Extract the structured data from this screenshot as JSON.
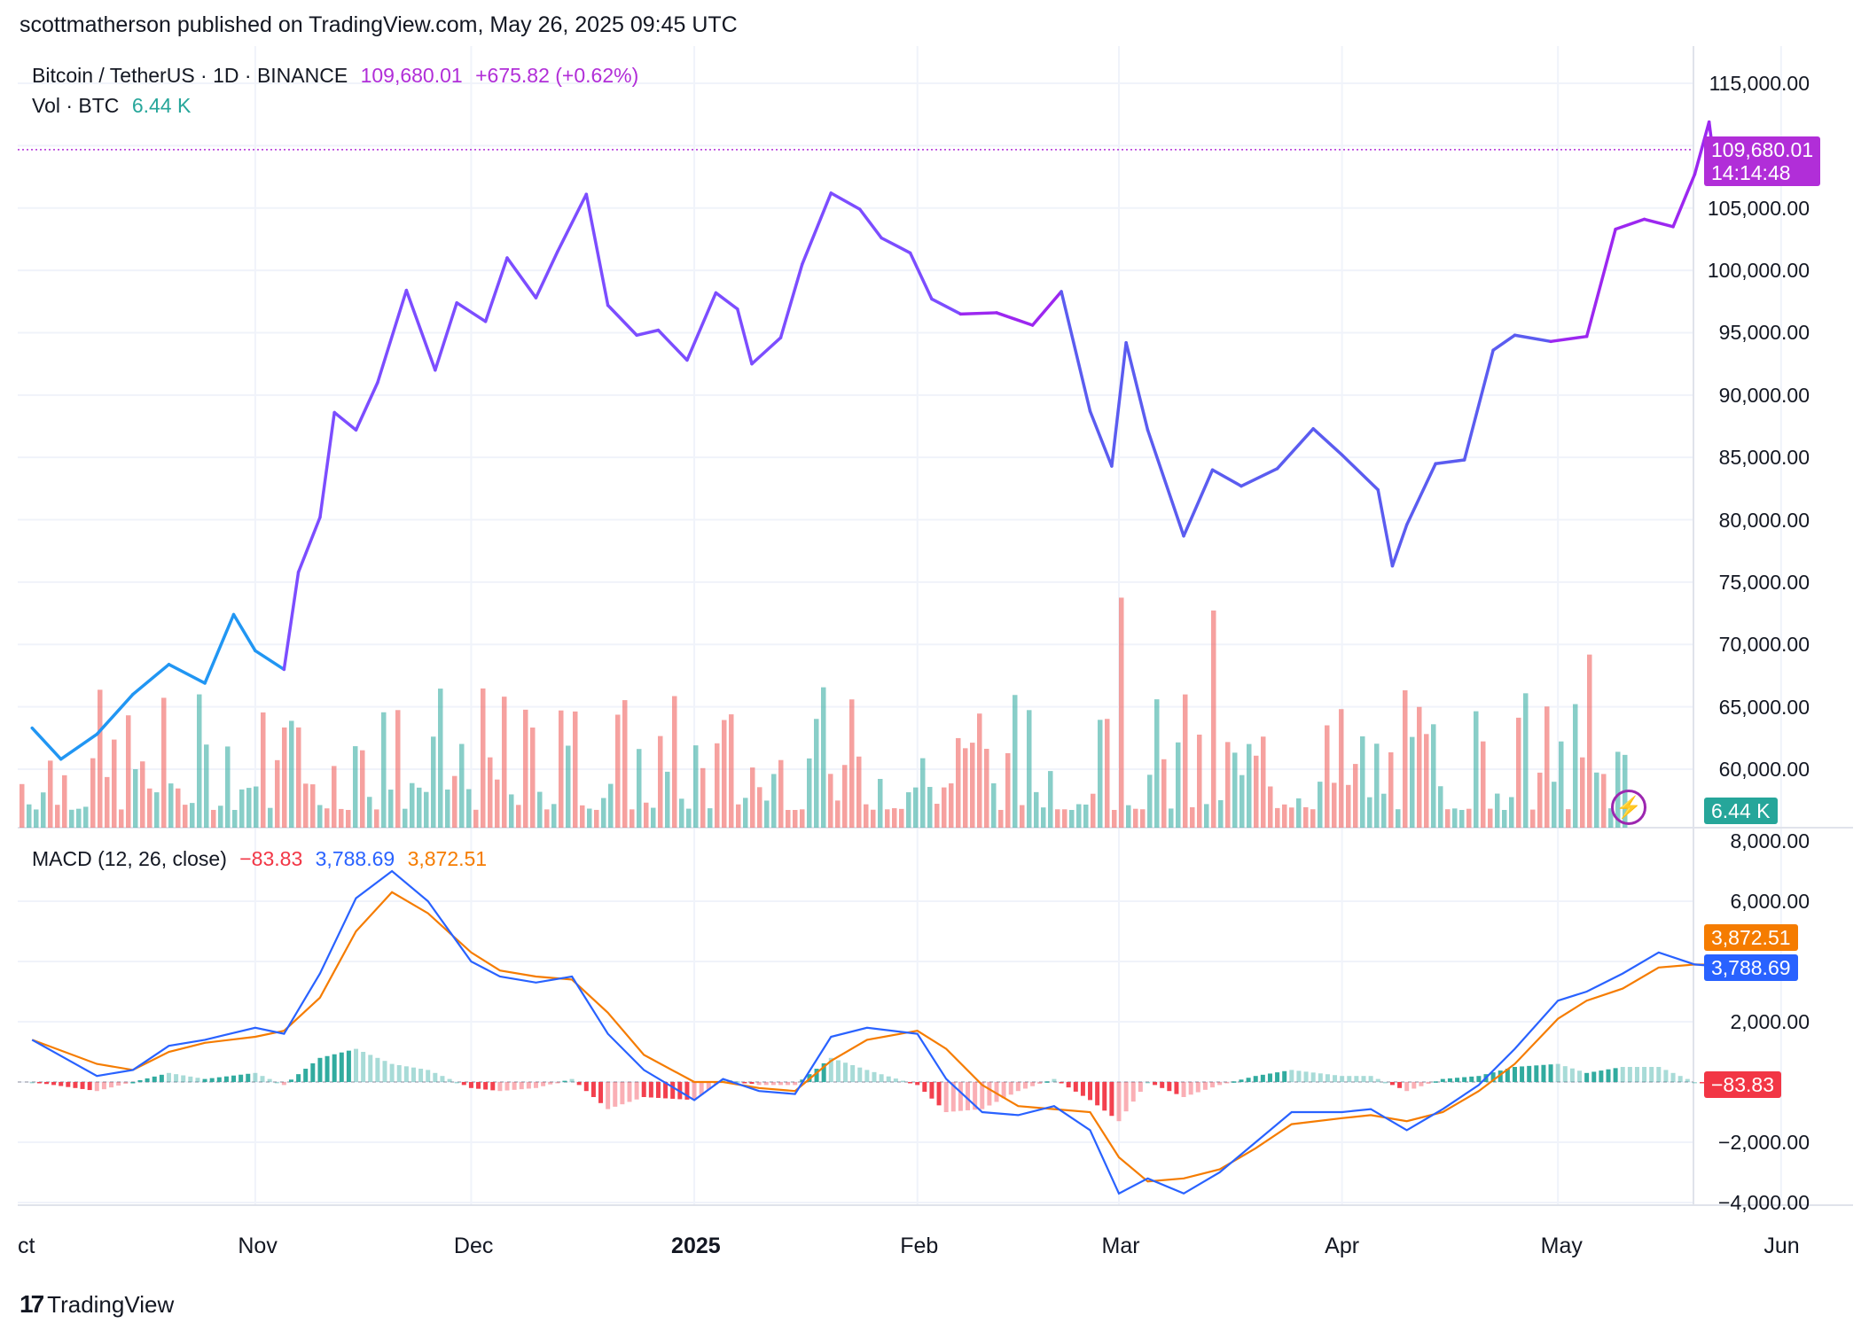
{
  "publisher": "scottmatherson published on TradingView.com, May 26, 2025 09:45 UTC",
  "brand": "TradingView",
  "colors": {
    "price_line_early": "#2196f3",
    "price_line_late": "#9c27f0",
    "price_last": "#b12ed8",
    "vol_up": "#26a69a",
    "vol_down": "#ef5350",
    "macd": "#2962ff",
    "signal": "#f57c00",
    "hist_up": "#26a69a",
    "hist_down": "#f23645"
  },
  "legend": {
    "symbol": "Bitcoin / TetherUS · 1D · BINANCE",
    "last": "109,680.01",
    "change": "+675.82 (+0.62%)",
    "vol_label": "Vol · BTC",
    "vol_value": "6.44 K",
    "macd_label": "MACD (12, 26, close)",
    "macd_hist": "−83.83",
    "macd_line": "3,788.69",
    "macd_signal": "3,872.51"
  },
  "price_tags": {
    "price": "109,680.01",
    "countdown": "14:14:48",
    "volume": "6.44 K",
    "signal": "3,872.51",
    "macd": "3,788.69",
    "hist": "−83.83"
  },
  "icons": {
    "flash": "lightning-icon",
    "logo": "tradingview-logo-icon"
  },
  "chart_data": [
    {
      "type": "line",
      "title": "Bitcoin / TetherUS · 1D · BINANCE",
      "x": [
        "2024-10-01",
        "2024-10-05",
        "2024-10-10",
        "2024-10-15",
        "2024-10-20",
        "2024-10-25",
        "2024-10-29",
        "2024-11-01",
        "2024-11-05",
        "2024-11-07",
        "2024-11-10",
        "2024-11-12",
        "2024-11-15",
        "2024-11-18",
        "2024-11-22",
        "2024-11-26",
        "2024-11-29",
        "2024-12-03",
        "2024-12-06",
        "2024-12-10",
        "2024-12-13",
        "2024-12-17",
        "2024-12-20",
        "2024-12-24",
        "2024-12-27",
        "2024-12-31",
        "2025-01-04",
        "2025-01-07",
        "2025-01-09",
        "2025-01-13",
        "2025-01-16",
        "2025-01-20",
        "2025-01-24",
        "2025-01-27",
        "2025-01-31",
        "2025-02-03",
        "2025-02-07",
        "2025-02-12",
        "2025-02-17",
        "2025-02-21",
        "2025-02-25",
        "2025-02-28",
        "2025-03-02",
        "2025-03-05",
        "2025-03-10",
        "2025-03-14",
        "2025-03-18",
        "2025-03-23",
        "2025-03-28",
        "2025-04-01",
        "2025-04-06",
        "2025-04-08",
        "2025-04-10",
        "2025-04-14",
        "2025-04-18",
        "2025-04-22",
        "2025-04-25",
        "2025-04-30",
        "2025-05-05",
        "2025-05-09",
        "2025-05-13",
        "2025-05-17",
        "2025-05-20",
        "2025-05-22",
        "2025-05-23",
        "2025-05-26"
      ],
      "y": [
        63300,
        60800,
        62800,
        66000,
        68400,
        66900,
        72400,
        69500,
        68000,
        75800,
        80200,
        88600,
        87200,
        91000,
        98400,
        92000,
        97400,
        95900,
        101000,
        97800,
        101500,
        106100,
        97200,
        94800,
        95200,
        92800,
        98200,
        96900,
        92500,
        94600,
        100500,
        106200,
        104900,
        102600,
        101400,
        97700,
        96500,
        96600,
        95600,
        98300,
        88700,
        84300,
        94200,
        87200,
        78700,
        84000,
        82700,
        84100,
        87300,
        85200,
        82400,
        76300,
        79600,
        84500,
        84800,
        93600,
        94800,
        94300,
        94700,
        103300,
        104100,
        103500,
        107700,
        111900,
        107300,
        109680
      ]
    },
    {
      "type": "bar",
      "title": "Vol · BTC",
      "last_value": "6.44 K"
    },
    {
      "type": "line",
      "title": "MACD (12, 26, close)",
      "ylim": [
        -4000,
        8000
      ],
      "x": [
        "2024-10-01",
        "2024-10-10",
        "2024-10-15",
        "2024-10-20",
        "2024-10-25",
        "2024-11-01",
        "2024-11-05",
        "2024-11-10",
        "2024-11-15",
        "2024-11-20",
        "2024-11-25",
        "2024-12-01",
        "2024-12-05",
        "2024-12-10",
        "2024-12-15",
        "2024-12-20",
        "2024-12-25",
        "2025-01-01",
        "2025-01-05",
        "2025-01-10",
        "2025-01-15",
        "2025-01-20",
        "2025-01-25",
        "2025-02-01",
        "2025-02-05",
        "2025-02-10",
        "2025-02-15",
        "2025-02-20",
        "2025-02-25",
        "2025-03-01",
        "2025-03-05",
        "2025-03-10",
        "2025-03-15",
        "2025-03-20",
        "2025-03-25",
        "2025-04-01",
        "2025-04-05",
        "2025-04-10",
        "2025-04-15",
        "2025-04-20",
        "2025-04-25",
        "2025-05-01",
        "2025-05-05",
        "2025-05-10",
        "2025-05-15",
        "2025-05-20",
        "2025-05-26"
      ],
      "series": [
        {
          "name": "MACD",
          "values": [
            1400,
            200,
            400,
            1200,
            1400,
            1800,
            1600,
            3600,
            6100,
            7000,
            6000,
            4000,
            3500,
            3300,
            3500,
            1600,
            400,
            -600,
            100,
            -300,
            -400,
            1500,
            1800,
            1600,
            100,
            -1000,
            -1100,
            -800,
            -1600,
            -3700,
            -3200,
            -3700,
            -3000,
            -2000,
            -1000,
            -1000,
            -900,
            -1600,
            -900,
            -100,
            1100,
            2700,
            3000,
            3600,
            4300,
            3900,
            3789
          ]
        },
        {
          "name": "Signal",
          "values": [
            1400,
            600,
            400,
            1000,
            1300,
            1500,
            1700,
            2800,
            5000,
            6300,
            5600,
            4300,
            3700,
            3500,
            3400,
            2300,
            900,
            0,
            0,
            -200,
            -300,
            700,
            1400,
            1700,
            1100,
            -100,
            -800,
            -900,
            -1000,
            -2500,
            -3300,
            -3200,
            -2900,
            -2200,
            -1400,
            -1200,
            -1100,
            -1300,
            -1000,
            -300,
            600,
            2100,
            2700,
            3100,
            3800,
            3900,
            3873
          ]
        },
        {
          "name": "Histogram",
          "values": [
            0,
            -300,
            0,
            300,
            100,
            300,
            -100,
            800,
            1100,
            600,
            400,
            -200,
            -300,
            -200,
            100,
            -900,
            -500,
            -600,
            100,
            -100,
            -100,
            800,
            400,
            -100,
            -1000,
            -900,
            -300,
            100,
            -600,
            -1300,
            0,
            -500,
            -100,
            200,
            400,
            200,
            200,
            -300,
            100,
            200,
            500,
            600,
            300,
            500,
            500,
            0,
            -84
          ]
        }
      ]
    }
  ],
  "axes": {
    "price_ticks": [
      "115,000.00",
      "105,000.00",
      "100,000.00",
      "95,000.00",
      "90,000.00",
      "85,000.00",
      "80,000.00",
      "75,000.00",
      "70,000.00",
      "65,000.00",
      "60,000.00"
    ],
    "macd_ticks": [
      "8,000.00",
      "6,000.00",
      "2,000.00",
      "−2,000.00",
      "−4,000.00"
    ],
    "x_ticks": [
      {
        "label": "ct",
        "bold": false
      },
      {
        "label": "Nov",
        "bold": false
      },
      {
        "label": "Dec",
        "bold": false
      },
      {
        "label": "2025",
        "bold": true
      },
      {
        "label": "Feb",
        "bold": false
      },
      {
        "label": "Mar",
        "bold": false
      },
      {
        "label": "Apr",
        "bold": false
      },
      {
        "label": "May",
        "bold": false
      },
      {
        "label": "Jun",
        "bold": false
      }
    ]
  }
}
